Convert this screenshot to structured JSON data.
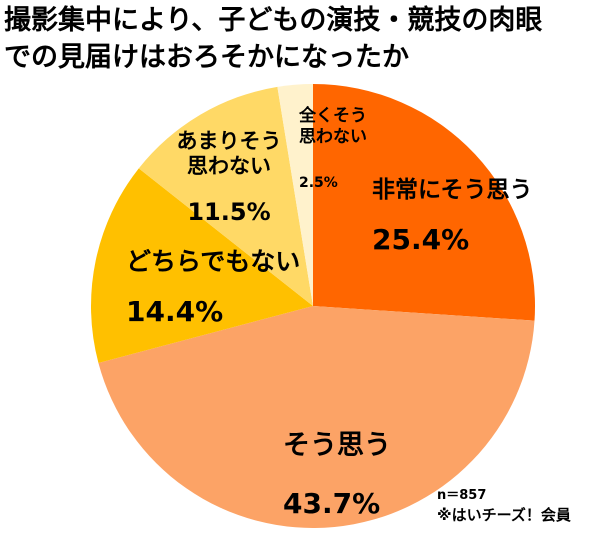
{
  "page": {
    "background_color": "#FFFFFF",
    "title_display": "撮影集中により、子どもの演技・競技の肉眼\nでの見届けはおろそかになったか"
  },
  "chart_data": {
    "type": "pie",
    "title": "撮影集中により、子どもの演技・競技の肉眼での見届けはおろそかになったか",
    "unit": "%",
    "start_position": "12-oclock",
    "direction": "clockwise",
    "values_sum": 97.5,
    "legend_position": "labels-on-chart",
    "slices": [
      {
        "label": "非常にそう思う",
        "label_display": "非常にそう思う",
        "value": 25.4,
        "pct_display": "25.4%",
        "color": "#FF6600"
      },
      {
        "label": "そう思う",
        "label_display": "そう思う",
        "value": 43.7,
        "pct_display": "43.7%",
        "color": "#FCA366"
      },
      {
        "label": "どちらでもない",
        "label_display": "どちらでもない",
        "value": 14.4,
        "pct_display": "14.4%",
        "color": "#FFC000"
      },
      {
        "label": "あまりそう思わない",
        "label_display": "あまりそう\n思わない",
        "value": 11.5,
        "pct_display": "11.5%",
        "color": "#FFD966"
      },
      {
        "label": "全くそう思わない",
        "label_display": "全くそう\n思わない",
        "value": 2.5,
        "pct_display": "2.5%",
        "color": "#FFF2CC"
      }
    ],
    "footnotes": {
      "sample_size": "n＝857",
      "source": "※はいチーズ！会員"
    }
  }
}
